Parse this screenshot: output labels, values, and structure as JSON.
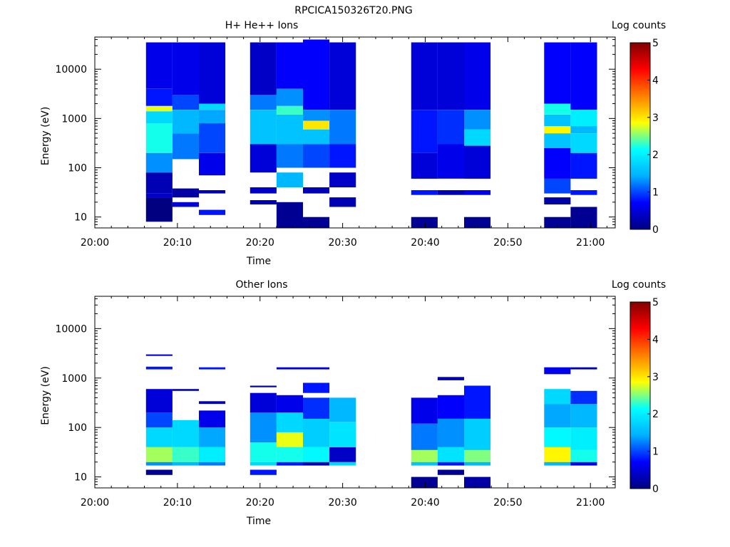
{
  "figure_title": "RPCICA150326T20.PNG",
  "colormap_stops": [
    "#000080",
    "#0000ff",
    "#00b0ff",
    "#00ffff",
    "#ffff00",
    "#ff8000",
    "#ff0000",
    "#800000"
  ],
  "chart_data": [
    {
      "type": "heatmap",
      "title": "H+ He++ Ions",
      "xlabel": "Time",
      "ylabel": "Energy (eV)",
      "x_ticks": [
        "20:00",
        "20:10",
        "20:20",
        "20:30",
        "20:40",
        "20:50",
        "21:00"
      ],
      "y_ticks": [
        "10",
        "100",
        "1000",
        "10000"
      ],
      "yscale": "log",
      "ylim": [
        6,
        45000
      ],
      "xlim_minutes": [
        0,
        63
      ],
      "colorbar": {
        "label": "Log counts",
        "ticks": [
          "0",
          "1",
          "2",
          "3",
          "4",
          "5"
        ],
        "range": [
          0,
          5
        ]
      },
      "columns": [
        {
          "t0": 6.2,
          "t1": 9.4,
          "segments": [
            [
              8,
              25,
              0
            ],
            [
              25,
              30,
              0.4
            ],
            [
              30,
              80,
              0.3
            ],
            [
              80,
              200,
              1.3
            ],
            [
              200,
              800,
              2.2
            ],
            [
              800,
              1400,
              1.8
            ],
            [
              1400,
              1800,
              2.8
            ],
            [
              1800,
              4000,
              0.8
            ],
            [
              4000,
              35000,
              0.6
            ]
          ]
        },
        {
          "t0": 9.4,
          "t1": 12.6,
          "segments": [
            [
              16,
              20,
              0.5
            ],
            [
              25,
              38,
              0.2
            ],
            [
              150,
              500,
              1.2
            ],
            [
              500,
              1500,
              1.5
            ],
            [
              1500,
              3000,
              1.0
            ],
            [
              3000,
              35000,
              0.6
            ]
          ]
        },
        {
          "t0": 12.6,
          "t1": 15.8,
          "segments": [
            [
              11,
              14,
              0.8
            ],
            [
              30,
              35,
              0.3
            ],
            [
              70,
              200,
              0.6
            ],
            [
              200,
              800,
              1.0
            ],
            [
              800,
              1500,
              1.4
            ],
            [
              1500,
              2000,
              1.8
            ],
            [
              2000,
              35000,
              0.5
            ]
          ]
        },
        {
          "t0": 18.8,
          "t1": 22.0,
          "segments": [
            [
              18,
              22,
              0.3
            ],
            [
              30,
              40,
              0.4
            ],
            [
              80,
              300,
              0.5
            ],
            [
              300,
              1500,
              1.6
            ],
            [
              1500,
              3000,
              1.2
            ],
            [
              3000,
              35000,
              0.4
            ]
          ]
        },
        {
          "t0": 22.0,
          "t1": 25.2,
          "segments": [
            [
              6,
              20,
              0.1
            ],
            [
              40,
              80,
              1.5
            ],
            [
              100,
              300,
              1.2
            ],
            [
              300,
              1200,
              1.6
            ],
            [
              1200,
              1800,
              2.3
            ],
            [
              1800,
              4000,
              1.3
            ],
            [
              4000,
              35000,
              0.7
            ]
          ]
        },
        {
          "t0": 25.2,
          "t1": 28.4,
          "segments": [
            [
              6,
              10,
              0.1
            ],
            [
              30,
              40,
              0.3
            ],
            [
              100,
              300,
              1.0
            ],
            [
              300,
              600,
              1.6
            ],
            [
              600,
              900,
              3.0
            ],
            [
              900,
              1500,
              1.3
            ],
            [
              1500,
              40000,
              0.7
            ]
          ]
        },
        {
          "t0": 28.4,
          "t1": 31.6,
          "segments": [
            [
              16,
              25,
              0.3
            ],
            [
              40,
              80,
              0.4
            ],
            [
              100,
              300,
              0.8
            ],
            [
              300,
              1500,
              1.2
            ],
            [
              1500,
              35000,
              0.5
            ]
          ]
        },
        {
          "t0": 38.3,
          "t1": 41.5,
          "segments": [
            [
              6,
              10,
              0.1
            ],
            [
              28,
              35,
              0.8
            ],
            [
              60,
              200,
              0.5
            ],
            [
              200,
              1500,
              0.8
            ],
            [
              1500,
              35000,
              0.5
            ]
          ]
        },
        {
          "t0": 41.5,
          "t1": 44.7,
          "segments": [
            [
              28,
              35,
              0.3
            ],
            [
              60,
              300,
              0.6
            ],
            [
              300,
              1500,
              0.9
            ],
            [
              1500,
              35000,
              0.5
            ]
          ]
        },
        {
          "t0": 44.7,
          "t1": 47.9,
          "segments": [
            [
              6,
              10,
              0.1
            ],
            [
              28,
              35,
              0.6
            ],
            [
              60,
              280,
              0.5
            ],
            [
              280,
              600,
              1.8
            ],
            [
              600,
              1500,
              1.3
            ],
            [
              1500,
              35000,
              0.6
            ]
          ]
        },
        {
          "t0": 54.4,
          "t1": 57.6,
          "segments": [
            [
              6,
              10,
              0.1
            ],
            [
              18,
              25,
              0.2
            ],
            [
              30,
              60,
              1.0
            ],
            [
              60,
              250,
              0.7
            ],
            [
              250,
              500,
              1.6
            ],
            [
              500,
              700,
              2.9
            ],
            [
              700,
              1200,
              1.6
            ],
            [
              1200,
              2000,
              2.2
            ],
            [
              2000,
              35000,
              0.7
            ]
          ]
        },
        {
          "t0": 57.6,
          "t1": 60.8,
          "segments": [
            [
              6,
              16,
              0.1
            ],
            [
              28,
              35,
              0.8
            ],
            [
              60,
              200,
              0.8
            ],
            [
              200,
              500,
              1.8
            ],
            [
              500,
              700,
              1.5
            ],
            [
              700,
              1500,
              2.0
            ],
            [
              1500,
              35000,
              0.7
            ]
          ]
        }
      ]
    },
    {
      "type": "heatmap",
      "title": "Other Ions",
      "xlabel": "Time",
      "ylabel": "Energy (eV)",
      "x_ticks": [
        "20:00",
        "20:10",
        "20:20",
        "20:30",
        "20:40",
        "20:50",
        "21:00"
      ],
      "y_ticks": [
        "10",
        "100",
        "1000",
        "10000"
      ],
      "yscale": "log",
      "ylim": [
        6,
        45000
      ],
      "xlim_minutes": [
        0,
        63
      ],
      "colorbar": {
        "label": "Log counts",
        "ticks": [
          "0",
          "1",
          "2",
          "3",
          "4",
          "5"
        ],
        "range": [
          0,
          5
        ]
      },
      "columns": [
        {
          "t0": 6.2,
          "t1": 9.4,
          "segments": [
            [
              11,
              14,
              0.1
            ],
            [
              17,
              20,
              1.3
            ],
            [
              20,
              40,
              2.6
            ],
            [
              40,
              100,
              1.8
            ],
            [
              100,
              200,
              1.0
            ],
            [
              200,
              600,
              0.5
            ],
            [
              1500,
              1700,
              0.8
            ],
            [
              2800,
              3000,
              0.5
            ]
          ]
        },
        {
          "t0": 9.4,
          "t1": 12.6,
          "segments": [
            [
              17,
              20,
              1.5
            ],
            [
              20,
              40,
              2.3
            ],
            [
              40,
              140,
              1.8
            ],
            [
              550,
              600,
              0.3
            ]
          ]
        },
        {
          "t0": 12.6,
          "t1": 15.8,
          "segments": [
            [
              17,
              20,
              1.2
            ],
            [
              20,
              40,
              2.0
            ],
            [
              40,
              100,
              1.4
            ],
            [
              100,
              220,
              0.6
            ],
            [
              300,
              340,
              0.4
            ],
            [
              1500,
              1650,
              0.8
            ]
          ]
        },
        {
          "t0": 18.8,
          "t1": 22.0,
          "segments": [
            [
              11,
              14,
              0.8
            ],
            [
              17,
              20,
              1.8
            ],
            [
              20,
              50,
              2.2
            ],
            [
              50,
              200,
              1.3
            ],
            [
              200,
              500,
              0.5
            ],
            [
              650,
              700,
              0.2
            ]
          ]
        },
        {
          "t0": 22.0,
          "t1": 25.2,
          "segments": [
            [
              17,
              20,
              0.8
            ],
            [
              20,
              40,
              2.2
            ],
            [
              40,
              80,
              2.8
            ],
            [
              80,
              200,
              1.8
            ],
            [
              200,
              450,
              0.6
            ],
            [
              1500,
              1650,
              0.5
            ]
          ]
        },
        {
          "t0": 25.2,
          "t1": 28.4,
          "segments": [
            [
              17,
              20,
              0.3
            ],
            [
              20,
              40,
              2.1
            ],
            [
              40,
              150,
              1.7
            ],
            [
              150,
              400,
              0.9
            ],
            [
              500,
              800,
              0.8
            ],
            [
              1500,
              1650,
              0.5
            ]
          ]
        },
        {
          "t0": 28.4,
          "t1": 31.6,
          "segments": [
            [
              17,
              20,
              1.8
            ],
            [
              20,
              40,
              0.4
            ],
            [
              40,
              130,
              1.9
            ],
            [
              130,
              400,
              1.5
            ]
          ]
        },
        {
          "t0": 38.3,
          "t1": 41.5,
          "segments": [
            [
              6,
              10,
              0.1
            ],
            [
              17,
              20,
              1.6
            ],
            [
              20,
              35,
              2.6
            ],
            [
              35,
              120,
              1.2
            ],
            [
              120,
              400,
              0.6
            ]
          ]
        },
        {
          "t0": 41.5,
          "t1": 44.7,
          "segments": [
            [
              11,
              14,
              0.1
            ],
            [
              17,
              20,
              0.8
            ],
            [
              20,
              40,
              1.9
            ],
            [
              40,
              150,
              1.3
            ],
            [
              150,
              450,
              0.7
            ],
            [
              900,
              1050,
              0.3
            ]
          ]
        },
        {
          "t0": 44.7,
          "t1": 47.9,
          "segments": [
            [
              6,
              10,
              0.2
            ],
            [
              17,
              20,
              1.5
            ],
            [
              20,
              35,
              2.5
            ],
            [
              35,
              150,
              1.7
            ],
            [
              150,
              700,
              0.8
            ]
          ]
        },
        {
          "t0": 54.4,
          "t1": 57.6,
          "segments": [
            [
              17,
              20,
              1.5
            ],
            [
              20,
              40,
              2.9
            ],
            [
              40,
              100,
              2.1
            ],
            [
              100,
              300,
              1.4
            ],
            [
              300,
              600,
              1.8
            ],
            [
              1200,
              1650,
              0.6
            ]
          ]
        },
        {
          "t0": 57.6,
          "t1": 60.8,
          "segments": [
            [
              17,
              20,
              0.6
            ],
            [
              20,
              35,
              2.2
            ],
            [
              35,
              100,
              2.0
            ],
            [
              100,
              300,
              1.5
            ],
            [
              300,
              550,
              0.9
            ],
            [
              1500,
              1650,
              0.3
            ]
          ]
        }
      ]
    }
  ]
}
